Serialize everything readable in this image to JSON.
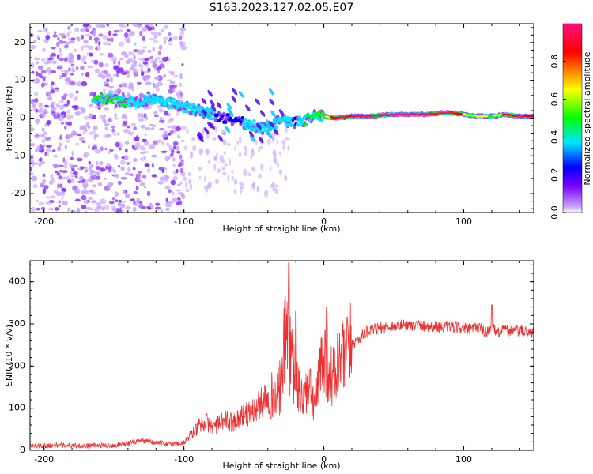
{
  "title": "S163.2023.127.02.05.E07",
  "chart_data": [
    {
      "type": "heatmap",
      "xlabel": "Height of straight line (km)",
      "ylabel": "Frequency (Hz)",
      "xlim": [
        -210,
        150
      ],
      "ylim": [
        -25,
        25
      ],
      "x_ticks": [
        -200,
        -100,
        0,
        100
      ],
      "x_tick_labels": [
        "-200",
        "-100",
        "0",
        "100"
      ],
      "y_ticks": [
        -20,
        -10,
        0,
        10,
        20
      ],
      "y_tick_labels": [
        "-20",
        "-10",
        "0",
        "10",
        "20"
      ],
      "colorbar": {
        "label": "Normalized spectral amplitude",
        "range": [
          0,
          1
        ],
        "ticks": [
          0.0,
          0.2,
          0.4,
          0.6,
          0.8
        ],
        "tick_labels": [
          "0.0",
          "0.2",
          "0.4",
          "0.6",
          "0.8"
        ],
        "colormap": [
          "#ffffff",
          "#c9a6ff",
          "#7a00ff",
          "#0000ff",
          "#00e5ff",
          "#00ff00",
          "#ffff00",
          "#ff0000",
          "#ff1080"
        ]
      },
      "ridge": {
        "x": [
          -165,
          -150,
          -140,
          -130,
          -120,
          -110,
          -100,
          -90,
          -80,
          -70,
          -60,
          -50,
          -40,
          -30,
          -25,
          -20,
          -15,
          -10,
          -5,
          0,
          10,
          20,
          30,
          50,
          70,
          90,
          100,
          110,
          120,
          130,
          140,
          150
        ],
        "y": [
          5,
          5,
          4,
          4.5,
          5,
          4,
          3,
          2,
          1,
          0,
          -1,
          -2,
          -3,
          0,
          -1,
          -1,
          -1,
          0,
          1,
          0.5,
          0,
          0.5,
          0.5,
          1,
          1,
          1.5,
          1,
          0.5,
          0.5,
          1,
          0.5,
          0.5
        ],
        "amplitude": [
          0.5,
          0.55,
          0.5,
          0.45,
          0.4,
          0.45,
          0.5,
          0.45,
          0.4,
          0.3,
          0.35,
          0.45,
          0.4,
          0.45,
          0.4,
          0.35,
          0.5,
          0.5,
          0.55,
          0.6,
          0.9,
          0.85,
          0.95,
          1.0,
          0.9,
          0.95,
          0.75,
          0.7,
          0.6,
          0.8,
          0.9,
          0.8
        ]
      },
      "scatter_region": {
        "x_range": [
          -210,
          -100
        ],
        "amplitude_range": [
          0.05,
          0.25
        ]
      }
    },
    {
      "type": "line",
      "xlabel": "Height of straight line (km)",
      "ylabel": "SNR (10 * v/v)",
      "xlim": [
        -210,
        150
      ],
      "ylim": [
        0,
        450
      ],
      "x_ticks": [
        -200,
        -100,
        0,
        100
      ],
      "x_tick_labels": [
        "-200",
        "-100",
        "0",
        "100"
      ],
      "y_ticks": [
        0,
        100,
        200,
        300,
        400
      ],
      "y_tick_labels": [
        "0",
        "100",
        "200",
        "300",
        "400"
      ],
      "line_color": "#f03030",
      "x": [
        -210,
        -190,
        -170,
        -150,
        -130,
        -120,
        -110,
        -100,
        -95,
        -90,
        -85,
        -80,
        -75,
        -70,
        -65,
        -60,
        -55,
        -50,
        -45,
        -40,
        -35,
        -30,
        -28,
        -26,
        -24,
        -22,
        -20,
        -18,
        -16,
        -14,
        -12,
        -10,
        -8,
        -6,
        -4,
        -2,
        0,
        2,
        4,
        6,
        8,
        10,
        15,
        20,
        25,
        30,
        40,
        50,
        60,
        70,
        80,
        90,
        100,
        105,
        110,
        115,
        120,
        125,
        130,
        140,
        150
      ],
      "y": [
        10,
        12,
        11,
        12,
        22,
        18,
        14,
        18,
        38,
        55,
        70,
        55,
        62,
        72,
        65,
        80,
        85,
        95,
        110,
        140,
        120,
        160,
        260,
        290,
        220,
        190,
        160,
        140,
        130,
        120,
        150,
        140,
        120,
        110,
        150,
        200,
        240,
        210,
        190,
        170,
        180,
        200,
        220,
        250,
        265,
        280,
        290,
        295,
        298,
        296,
        294,
        292,
        290,
        285,
        295,
        280,
        290,
        280,
        285,
        283,
        280
      ],
      "peaks": [
        {
          "x": -25,
          "y": 445
        },
        {
          "x": -20,
          "y": 330
        },
        {
          "x": 2,
          "y": 340
        },
        {
          "x": 120,
          "y": 345
        }
      ]
    }
  ]
}
